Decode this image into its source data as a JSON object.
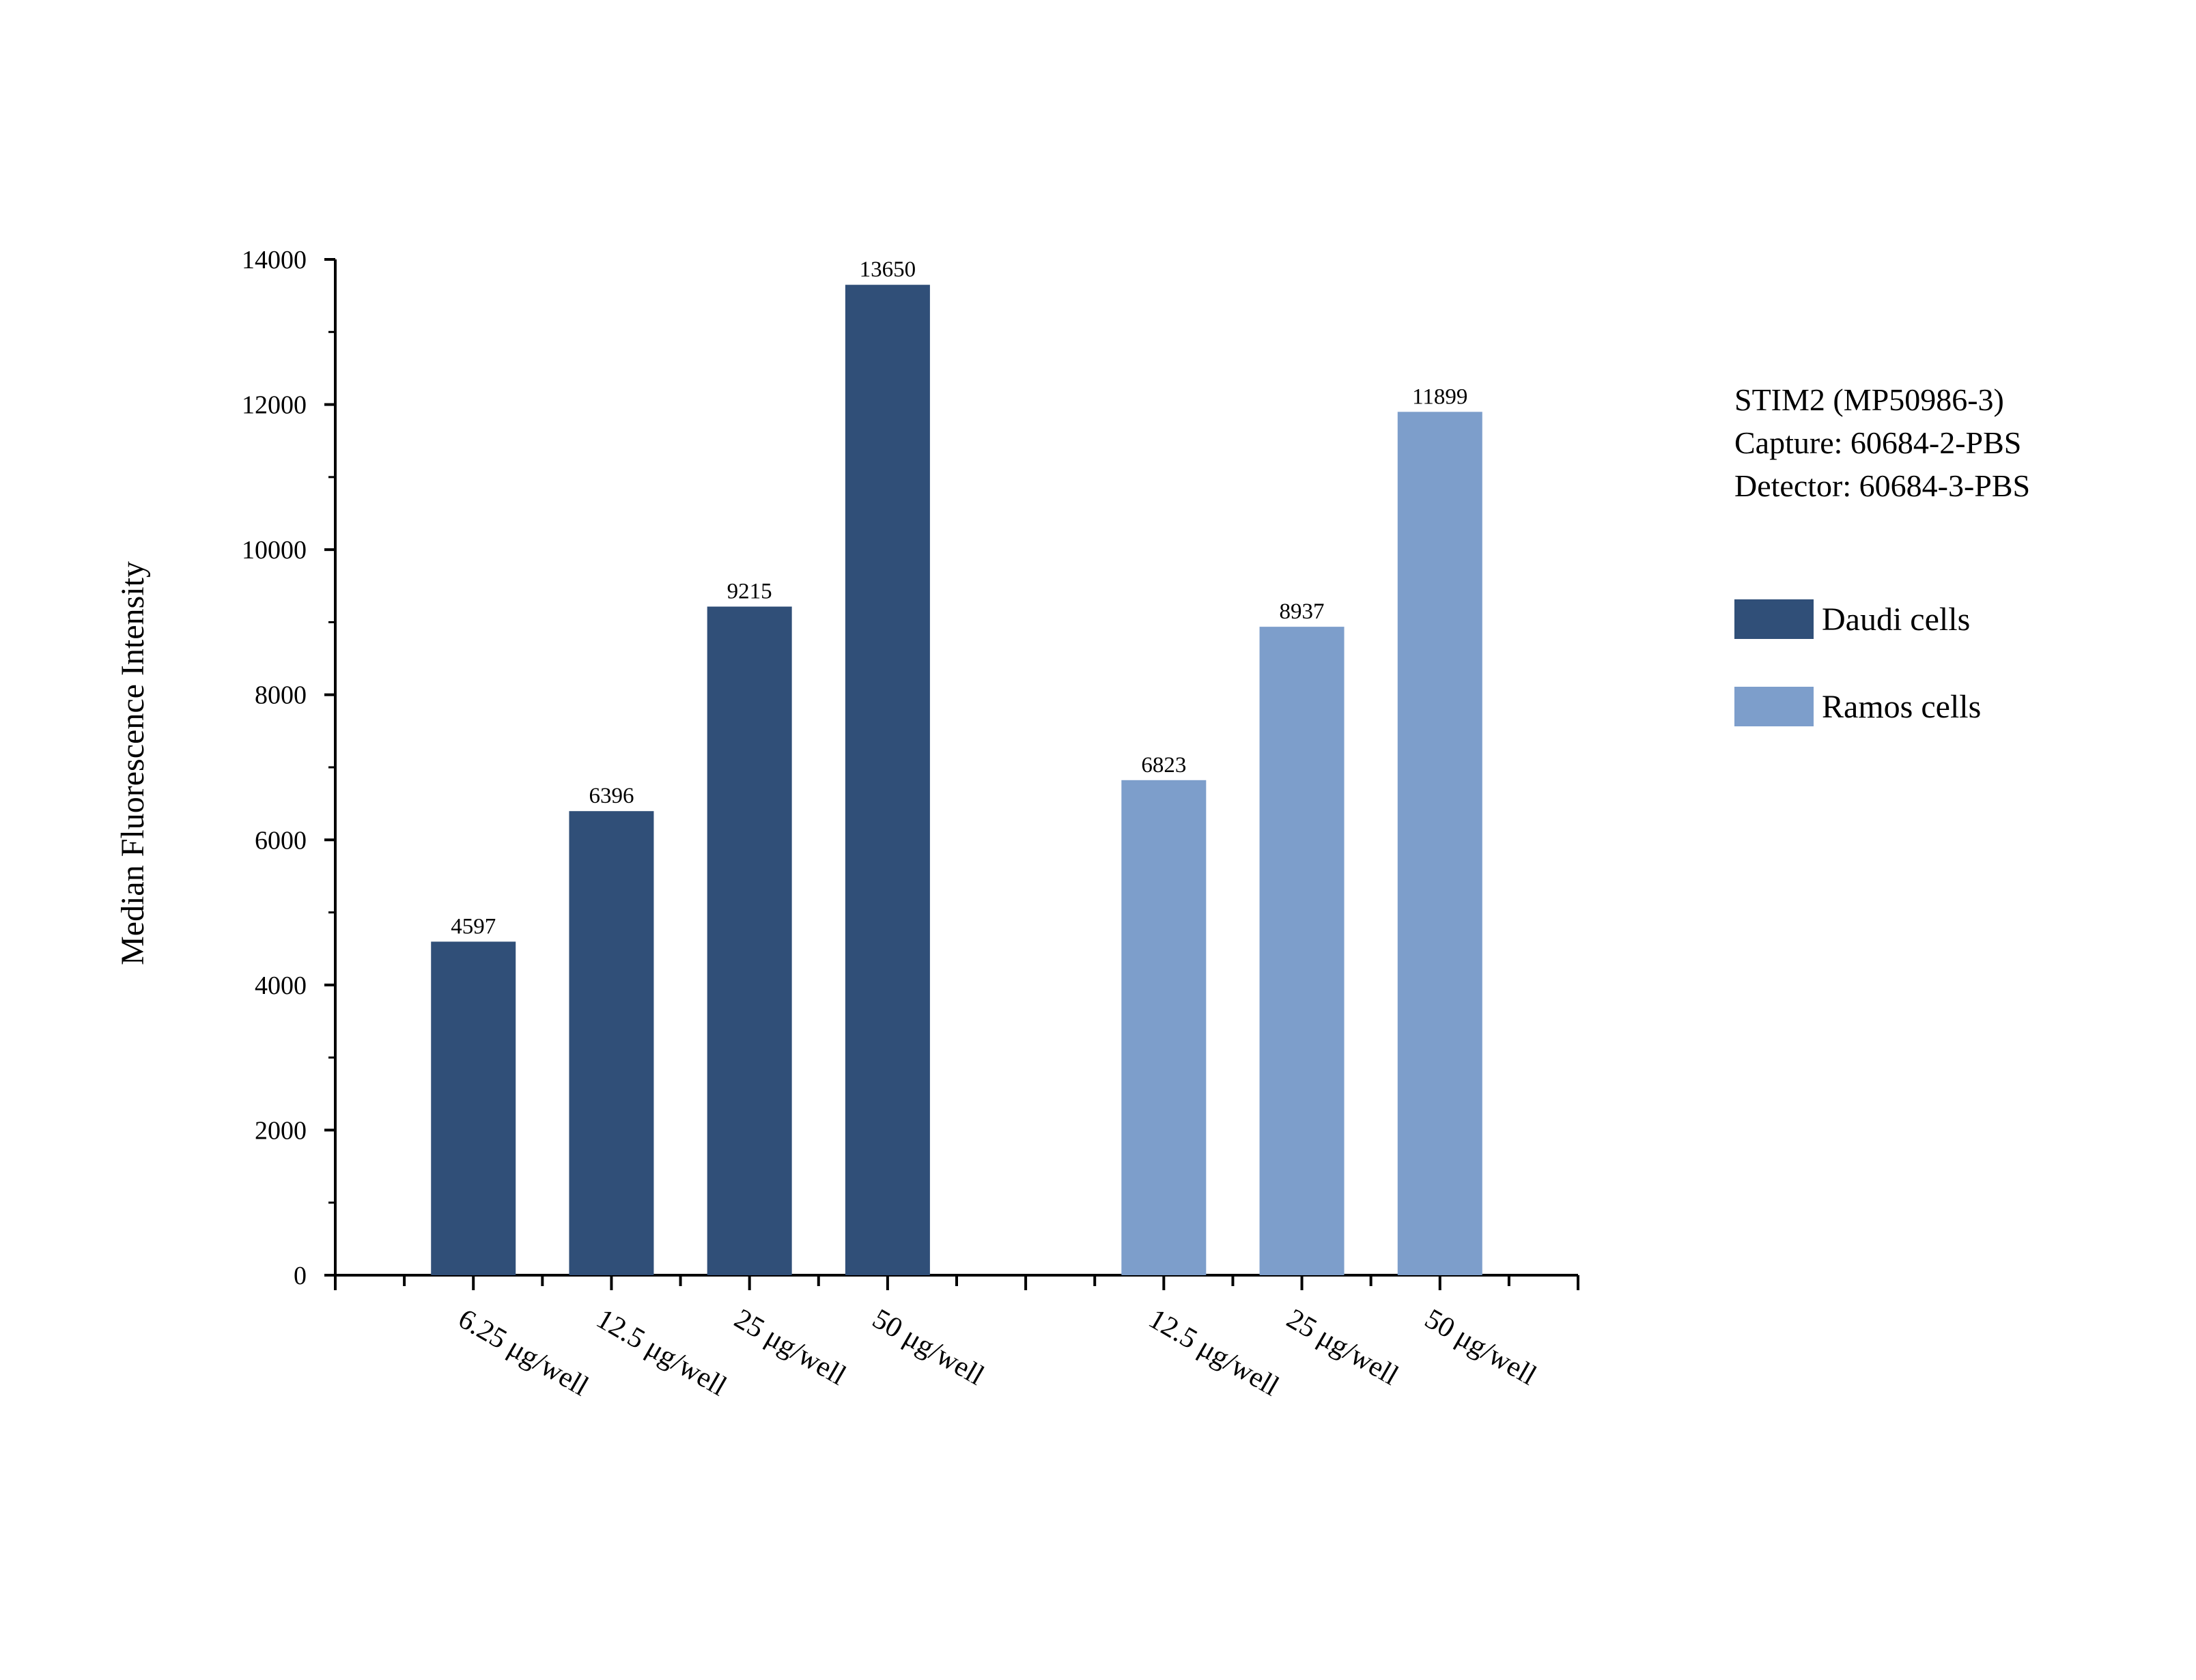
{
  "chart_data": {
    "type": "bar",
    "ylabel": "Median Fluorescence Intensity",
    "xlabel": "",
    "ylim": [
      0,
      14000
    ],
    "yticks": [
      0,
      2000,
      4000,
      6000,
      8000,
      10000,
      12000,
      14000
    ],
    "grid": false,
    "legend_position": "right",
    "annotation_lines": [
      "STIM2 (MP50986-3)",
      "Capture: 60684-2-PBS",
      "Detector: 60684-3-PBS"
    ],
    "series": [
      {
        "name": "Daudi cells",
        "color": "#304f78",
        "categories": [
          "6.25 μg/well",
          "12.5 μg/well",
          "25 μg/well",
          "50 μg/well"
        ],
        "values": [
          4597,
          6396,
          9215,
          13650
        ]
      },
      {
        "name": "Ramos cells",
        "color": "#7d9ecb",
        "categories": [
          "12.5 μg/well",
          "25 μg/well",
          "50 μg/well"
        ],
        "values": [
          6823,
          8937,
          11899
        ]
      }
    ]
  }
}
